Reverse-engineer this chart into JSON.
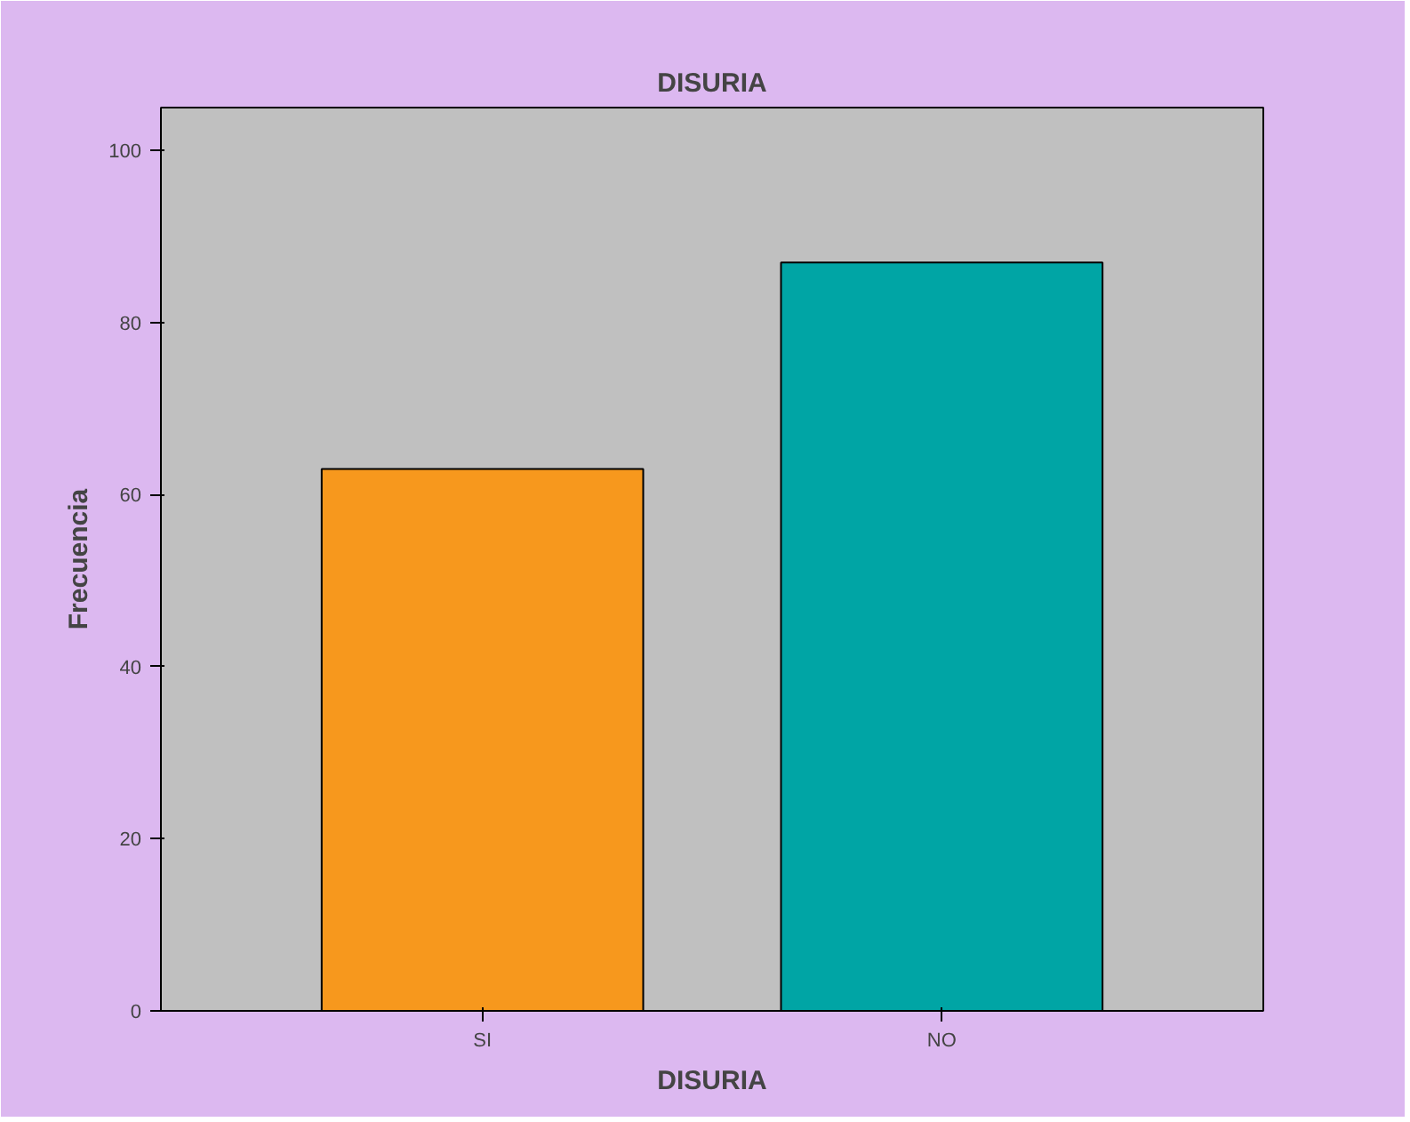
{
  "chart_data": {
    "type": "bar",
    "title": "DISURIA",
    "xlabel": "DISURIA",
    "ylabel": "Frecuencia",
    "categories": [
      "SI",
      "NO"
    ],
    "values": [
      63,
      87
    ],
    "colors": [
      "#f7981d",
      "#00a5a5"
    ],
    "ylim": [
      0,
      105
    ],
    "yticks": [
      0,
      20,
      40,
      60,
      80,
      100
    ],
    "grid": false
  }
}
